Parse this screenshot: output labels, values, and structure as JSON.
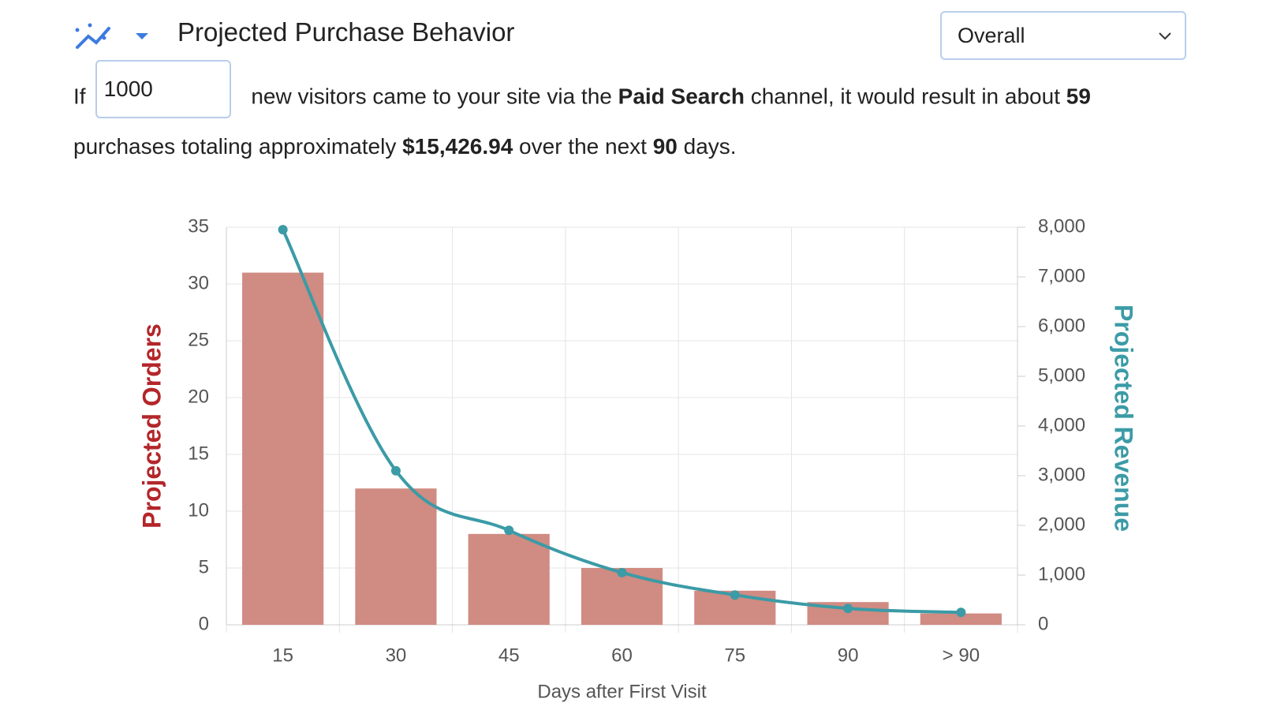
{
  "header": {
    "title": "Projected Purchase Behavior",
    "segment_select": "Overall"
  },
  "sentence": {
    "prefix": "If",
    "visitors_input": "1000",
    "part1": "new visitors came to your site via the",
    "channel": "Paid Search",
    "part2": "channel, it would result in about",
    "purchases": "59",
    "part3": "purchases totaling approximately",
    "total": "$15,426.94",
    "part4": "over the next",
    "days": "90",
    "part5": "days."
  },
  "chart_data": {
    "type": "bar",
    "categories": [
      "15",
      "30",
      "45",
      "60",
      "75",
      "90",
      "> 90"
    ],
    "xlabel": "Days after First Visit",
    "ylabel": "Projected Orders",
    "ylabel_color": "#b3262a",
    "y2label": "Projected Revenue",
    "y2label_color": "#3b9ba6",
    "ylim": [
      0,
      35
    ],
    "yticks": [
      0,
      5,
      10,
      15,
      20,
      25,
      30,
      35
    ],
    "y2lim": [
      0,
      8000
    ],
    "y2ticks": [
      0,
      {
        "value": 1000,
        "label": "1,000"
      },
      {
        "value": 2000,
        "label": "2,000"
      },
      {
        "value": 3000,
        "label": "3,000"
      },
      {
        "value": 4000,
        "label": "4,000"
      },
      {
        "value": 5000,
        "label": "5,000"
      },
      {
        "value": 6000,
        "label": "6,000"
      },
      {
        "value": 7000,
        "label": "7,000"
      },
      {
        "value": 8000,
        "label": "8,000"
      }
    ],
    "grid": true,
    "series": [
      {
        "name": "Projected Orders",
        "type": "bar",
        "color": "#d08b82",
        "values": [
          31,
          12,
          8,
          5,
          3,
          2,
          1
        ]
      },
      {
        "name": "Projected Revenue",
        "type": "line",
        "axis": "y2",
        "color": "#3b9ba6",
        "values": [
          7950,
          3100,
          1900,
          1050,
          600,
          330,
          250
        ]
      }
    ]
  }
}
